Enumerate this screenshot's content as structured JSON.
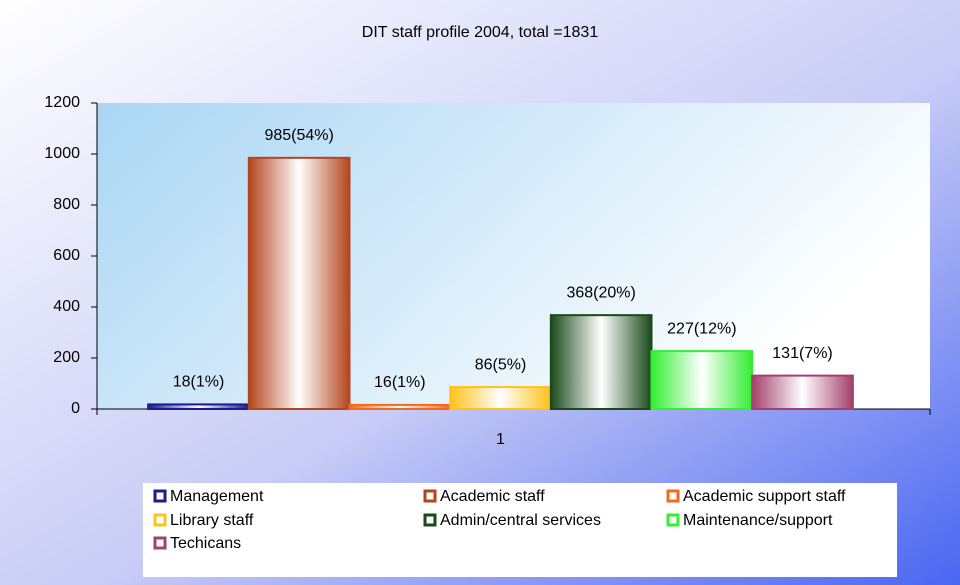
{
  "chart_data": {
    "type": "bar",
    "title": "DIT staff profile 2004, total =1831",
    "categories": [
      "1"
    ],
    "series": [
      {
        "name": "Management",
        "color": "#1c1c8c",
        "values": [
          18
        ],
        "value_labels": [
          "18(1%)"
        ]
      },
      {
        "name": "Academic staff",
        "color": "#b4461e",
        "values": [
          985
        ],
        "value_labels": [
          "985(54%)"
        ]
      },
      {
        "name": "Academic support staff",
        "color": "#f26a1e",
        "values": [
          16
        ],
        "value_labels": [
          "16(1%)"
        ]
      },
      {
        "name": "Library staff",
        "color": "#ffc21a",
        "values": [
          86
        ],
        "value_labels": [
          "86(5%)"
        ]
      },
      {
        "name": "Admin/central services",
        "color": "#1a4a1a",
        "values": [
          368
        ],
        "value_labels": [
          "368(20%)"
        ]
      },
      {
        "name": "Maintenance/support",
        "color": "#33ee33",
        "values": [
          227
        ],
        "value_labels": [
          "227(12%)"
        ]
      },
      {
        "name": "Techicans",
        "color": "#a3406c",
        "values": [
          131
        ],
        "value_labels": [
          "131(7%)"
        ]
      }
    ],
    "ylim": [
      0,
      1200
    ],
    "yticks": [
      0,
      200,
      400,
      600,
      800,
      1000,
      1200
    ],
    "grid": false
  }
}
